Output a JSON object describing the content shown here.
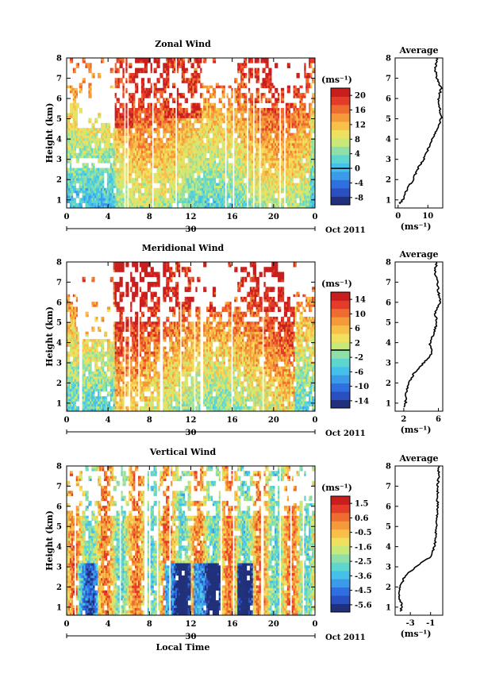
{
  "figure": {
    "date_label": "Oct 2011",
    "xlabel": "Local Time",
    "day_label": "30",
    "x_ticks": [
      "0",
      "4",
      "8",
      "12",
      "16",
      "20",
      "0"
    ],
    "y_ticks": [
      "1",
      "2",
      "3",
      "4",
      "5",
      "6",
      "7",
      "8"
    ],
    "avg_y_ticks": [
      "1",
      "2",
      "3",
      "4",
      "5",
      "6",
      "7",
      "8"
    ],
    "ylabel": "Height (km)",
    "unit_label": "(ms⁻¹)",
    "avg_title": "Average",
    "avg_xlabel": "(ms⁻¹)"
  },
  "colormap": [
    "#20307a",
    "#2a4fc0",
    "#2f6fe0",
    "#3c9be8",
    "#45c0ea",
    "#5dd6d0",
    "#8fe0a8",
    "#c8e878",
    "#f0e060",
    "#f8c048",
    "#f49a3a",
    "#ee6c30",
    "#e43c28",
    "#c81e1e"
  ],
  "chart_data": [
    {
      "type": "heatmap",
      "title": "Zonal Wind",
      "xlabel": "",
      "ylabel": "Height (km)",
      "xlim": [
        0,
        24
      ],
      "ylim": [
        0.6,
        8
      ],
      "colorbar": {
        "labels": [
          "20",
          "16",
          "12",
          "8",
          "4",
          "0",
          "-4",
          "-8"
        ],
        "range": [
          -10,
          22
        ],
        "zero_line": 0
      },
      "profile": {
        "x_ticks": [
          "0",
          "10"
        ],
        "xlim": [
          -1,
          15
        ],
        "heights": [
          0.8,
          1.0,
          1.5,
          2.0,
          2.5,
          3.0,
          3.5,
          4.0,
          4.5,
          5.0,
          5.5,
          6.0,
          6.5,
          7.0,
          7.5,
          8.0
        ],
        "values": [
          0.5,
          1.5,
          3.0,
          5.0,
          6.5,
          8.5,
          10.0,
          11.5,
          13.0,
          14.5,
          14.0,
          13.5,
          14.5,
          13.0,
          12.5,
          13.0
        ]
      }
    },
    {
      "type": "heatmap",
      "title": "Meridional Wind",
      "xlabel": "",
      "ylabel": "Height (km)",
      "xlim": [
        0,
        24
      ],
      "ylim": [
        0.6,
        8
      ],
      "colorbar": {
        "labels": [
          "14",
          "10",
          "6",
          "2",
          "-2",
          "-6",
          "-10",
          "-14"
        ],
        "range": [
          -16,
          16
        ],
        "zero_line": 0
      },
      "profile": {
        "x_ticks": [
          "2",
          "6"
        ],
        "xlim": [
          1,
          6.5
        ],
        "heights": [
          0.8,
          1.0,
          1.5,
          2.0,
          2.5,
          3.0,
          3.5,
          4.0,
          4.5,
          5.0,
          5.5,
          6.0,
          6.5,
          7.0,
          7.5,
          8.0
        ],
        "values": [
          2.1,
          2.2,
          2.3,
          2.6,
          3.2,
          4.3,
          5.3,
          5.0,
          5.5,
          5.8,
          5.6,
          6.2,
          6.0,
          5.9,
          5.6,
          5.8
        ]
      }
    },
    {
      "type": "heatmap",
      "title": "Vertical Wind",
      "xlabel": "Local Time",
      "ylabel": "Height (km)",
      "xlim": [
        0,
        24
      ],
      "ylim": [
        0.6,
        8
      ],
      "colorbar": {
        "labels": [
          "1.5",
          "0.6",
          "-0.5",
          "-1.6",
          "-2.5",
          "-3.6",
          "-4.5",
          "-5.6"
        ],
        "range": [
          -6,
          2
        ],
        "zero_line": null
      },
      "profile": {
        "x_ticks": [
          "-3",
          "-1"
        ],
        "xlim": [
          -4.5,
          0.2
        ],
        "heights": [
          0.8,
          1.0,
          1.5,
          2.0,
          2.5,
          3.0,
          3.5,
          4.0,
          4.5,
          5.0,
          5.5,
          6.0,
          6.5,
          7.0,
          7.5,
          8.0
        ],
        "values": [
          -4.0,
          -3.8,
          -4.1,
          -4.0,
          -3.6,
          -2.5,
          -1.0,
          -0.6,
          -0.5,
          -0.4,
          -0.4,
          -0.3,
          -0.3,
          -0.3,
          -0.2,
          -0.2
        ]
      }
    }
  ]
}
